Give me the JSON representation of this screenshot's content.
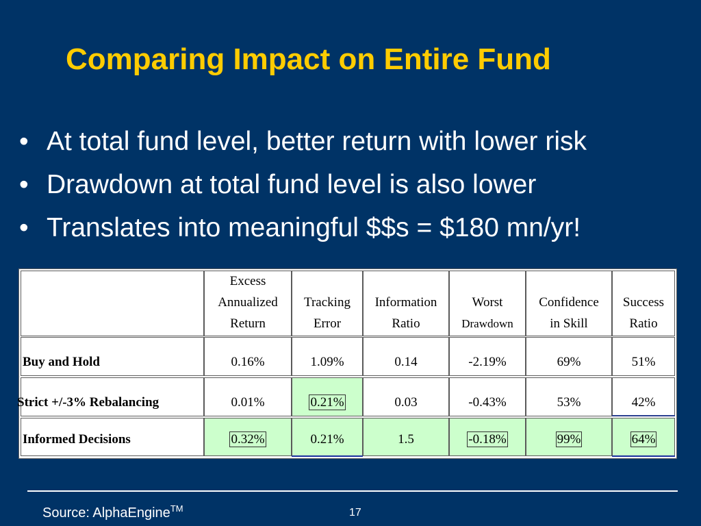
{
  "slide": {
    "title": "Comparing Impact on Entire Fund",
    "bullets": [
      "At total fund level, better return with lower risk",
      "Drawdown at total fund level is also lower",
      "Translates into meaningful $$s = $180 mn/yr!"
    ],
    "bullet_glyph": "•",
    "footer": {
      "source_text": "Source: AlphaEngine",
      "source_sup": "TM",
      "page_number": "17"
    }
  },
  "table": {
    "headers": [
      [
        "Excess",
        "Annualized",
        "Return"
      ],
      [
        "",
        "Tracking",
        "Error"
      ],
      [
        "",
        "Information",
        "Ratio"
      ],
      [
        "",
        "Worst",
        "Drawdown"
      ],
      [
        "",
        "Confidence",
        "in Skill"
      ],
      [
        "",
        "Success",
        "Ratio"
      ]
    ],
    "rows": [
      {
        "label": "Buy and Hold",
        "values": [
          "0.16%",
          "1.09%",
          "0.14",
          "-2.19%",
          "69%",
          "51%"
        ]
      },
      {
        "label": "Strict +/-3% Rebalancing",
        "values": [
          "0.01%",
          "0.21%",
          "0.03",
          "-0.43%",
          "53%",
          "42%"
        ]
      },
      {
        "label": "Informed Decisions",
        "values": [
          "0.32%",
          "0.21%",
          "1.5",
          "-0.18%",
          "99%",
          "64%"
        ]
      }
    ],
    "highlight_color": "#CCFFCC"
  },
  "colors": {
    "background": "#003366",
    "title": "#FFCC00",
    "text": "#FFFFFF"
  }
}
